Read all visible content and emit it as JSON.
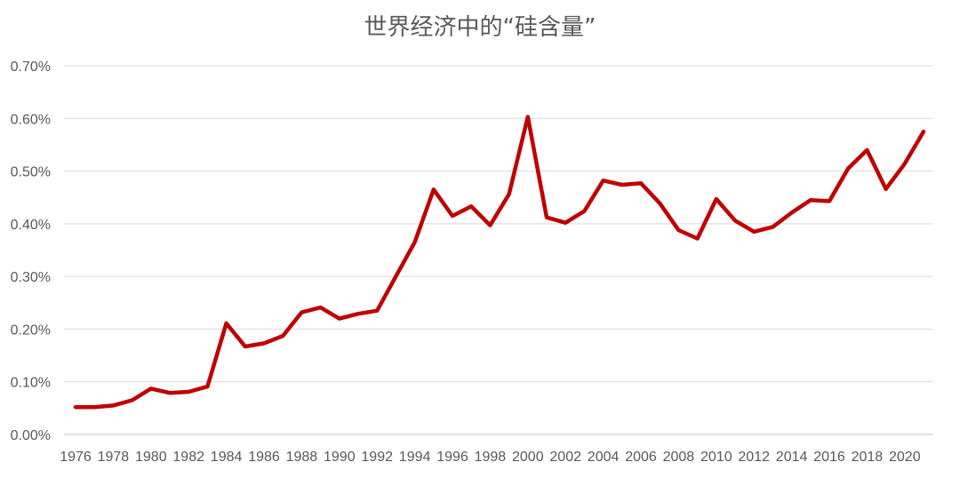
{
  "chart_data": {
    "type": "line",
    "title": "世界经济中的“硅含量”",
    "xlabel": "",
    "ylabel": "",
    "ylim": [
      0,
      0.7
    ],
    "yticks": [
      "0.00%",
      "0.10%",
      "0.20%",
      "0.30%",
      "0.40%",
      "0.50%",
      "0.60%",
      "0.70%"
    ],
    "xtick_labels": [
      "1976",
      "1978",
      "1980",
      "1982",
      "1984",
      "1986",
      "1988",
      "1990",
      "1992",
      "1994",
      "1996",
      "1998",
      "2000",
      "2002",
      "2004",
      "2006",
      "2008",
      "2010",
      "2012",
      "2014",
      "2016",
      "2018",
      "2020"
    ],
    "grid": true,
    "legend": "none",
    "colors": {
      "line": "#c00000",
      "grid": "#d9d9d9",
      "text": "#595959"
    },
    "series": [
      {
        "x": [
          1976,
          1977,
          1978,
          1979,
          1980,
          1981,
          1982,
          1983,
          1984,
          1985,
          1986,
          1987,
          1988,
          1989,
          1990,
          1991,
          1992,
          1993,
          1994,
          1995,
          1996,
          1997,
          1998,
          1999,
          2000,
          2001,
          2002,
          2003,
          2004,
          2005,
          2006,
          2007,
          2008,
          2009,
          2010,
          2011,
          2012,
          2013,
          2014,
          2015,
          2016,
          2017,
          2018,
          2019,
          2020,
          2021
        ],
        "values": [
          0.052,
          0.052,
          0.055,
          0.065,
          0.087,
          0.079,
          0.081,
          0.091,
          0.211,
          0.167,
          0.173,
          0.187,
          0.232,
          0.241,
          0.22,
          0.229,
          0.235,
          0.3,
          0.365,
          0.465,
          0.415,
          0.433,
          0.397,
          0.456,
          0.603,
          0.412,
          0.402,
          0.424,
          0.482,
          0.474,
          0.477,
          0.439,
          0.388,
          0.372,
          0.447,
          0.406,
          0.385,
          0.394,
          0.421,
          0.445,
          0.443,
          0.505,
          0.54,
          0.466,
          0.514,
          0.575
        ]
      }
    ]
  }
}
